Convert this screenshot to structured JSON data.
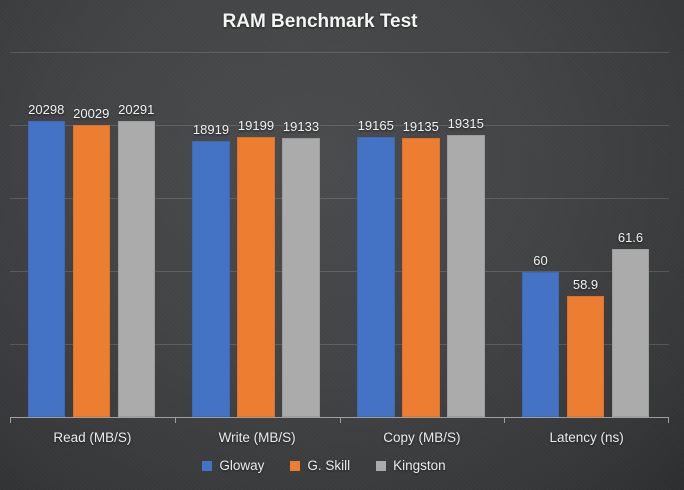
{
  "chart_data": {
    "type": "bar",
    "title": "RAM Benchmark Test",
    "categories": [
      "Read (MB/S)",
      "Write (MB/S)",
      "Copy  (MB/S)",
      "Latency (ns)"
    ],
    "series": [
      {
        "name": "Gloway",
        "color": "#4472C4",
        "values": [
          20298,
          18919,
          19165,
          60
        ],
        "height_frac": [
          0.812,
          0.757,
          0.767,
          0.397
        ]
      },
      {
        "name": "G. Skill",
        "color": "#ED7D31",
        "values": [
          20029,
          19199,
          19135,
          58.9
        ],
        "height_frac": [
          0.801,
          0.768,
          0.765,
          0.331
        ]
      },
      {
        "name": "Kingston",
        "color": "#ABABAB",
        "values": [
          20291,
          19133,
          19315,
          61.6
        ],
        "height_frac": [
          0.812,
          0.765,
          0.773,
          0.46
        ]
      }
    ],
    "primary_axis": {
      "min": 0,
      "max": 25000,
      "gridline_step": 5000,
      "tick_labels_visible": false
    },
    "scale_note": "Latency (ns) bars are drawn far larger than their values imply on the primary axis; height_frac records the rendered bar heights as fractions of plot height",
    "legend": {
      "position": "bottom",
      "entries": [
        "Gloway",
        "G. Skill",
        "Kingston"
      ]
    },
    "grid": true,
    "data_labels_visible": true,
    "colors": {
      "background": "#424344",
      "gridline": "#565758",
      "axis_line": "#9F9F9F",
      "text": "#F2F2F2"
    }
  }
}
